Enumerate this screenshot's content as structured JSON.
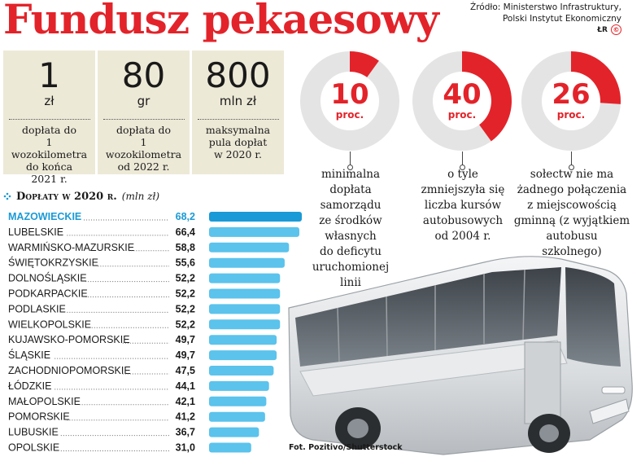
{
  "title": "Fundusz pekaesowy",
  "source": [
    "Źródło: Ministerstwo Infrastruktury,",
    "Polski Instytut Ekonomiczny"
  ],
  "credit": {
    "initials": "ŁR",
    "badge": "©P"
  },
  "colors": {
    "accent": "#e3232a",
    "bar": "#5bc3ec",
    "highlight": "#1a9ad6",
    "panel": "#ede9d7",
    "ring": "#e4e4e4"
  },
  "stats": [
    {
      "value": "1",
      "unit": "zł",
      "desc": [
        "dopłata do",
        "1 wozokilometra",
        "do końca",
        "2021 r."
      ]
    },
    {
      "value": "80",
      "unit": "gr",
      "desc": [
        "dopłata do",
        "1 wozokilometra",
        "od 2022 r."
      ]
    },
    {
      "value": "800",
      "unit": "mln zł",
      "desc": [
        "maksymalna",
        "pula dopłat",
        "w 2020 r."
      ]
    }
  ],
  "donuts": [
    {
      "percent": 10,
      "label": "10",
      "unit": "proc.",
      "desc": [
        "minimalna",
        "dopłata",
        "samorządu",
        "ze środków",
        "własnych",
        "do deficytu",
        "uruchomionej",
        "linii"
      ]
    },
    {
      "percent": 40,
      "label": "40",
      "unit": "proc.",
      "desc": [
        "o tyle",
        "zmniejszyła się",
        "liczba kursów",
        "autobusowych",
        "od 2004 r."
      ]
    },
    {
      "percent": 26,
      "label": "26",
      "unit": "proc.",
      "desc": [
        "sołectw nie ma",
        "żadnego połączenia",
        "z miejscowością",
        "gminną (z wyjątkiem",
        "autobusu",
        "szkolnego)"
      ]
    }
  ],
  "chart_heading": {
    "title": "Dopłaty w 2020 r.",
    "unit": "(mln zł)"
  },
  "chart_data": {
    "type": "bar",
    "title": "Dopłaty w 2020 r.",
    "ylabel": "(mln zł)",
    "categories": [
      "MAZOWIECKIE",
      "LUBELSKIE",
      "WARMIŃSKO-MAZURSKIE",
      "ŚWIĘTOKRZYSKIE",
      "DOLNOŚLĄSKIE",
      "PODKARPACKIE",
      "PODLASKIE",
      "WIELKOPOLSKIE",
      "KUJAWSKO-POMORSKIE",
      "ŚLĄSKIE",
      "ZACHODNIOPOMORSKIE",
      "ŁÓDZKIE",
      "MAŁOPOLSKIE",
      "POMORSKIE",
      "LUBUSKIE",
      "OPOLSKIE"
    ],
    "values": [
      68.2,
      66.4,
      58.8,
      55.6,
      52.2,
      52.2,
      52.2,
      52.2,
      49.7,
      49.7,
      47.5,
      44.1,
      42.1,
      41.2,
      36.7,
      31.0
    ],
    "value_labels": [
      "68,2",
      "66,4",
      "58,8",
      "55,6",
      "52,2",
      "52,2",
      "52,2",
      "52,2",
      "49,7",
      "49,7",
      "47,5",
      "44,1",
      "42,1",
      "41,2",
      "36,7",
      "31,0"
    ],
    "highlight": "MAZOWIECKIE",
    "orientation": "horizontal",
    "xlim": [
      0,
      68.2
    ]
  },
  "photo_credit": "Fot. Pozitivo/Shutterstock"
}
